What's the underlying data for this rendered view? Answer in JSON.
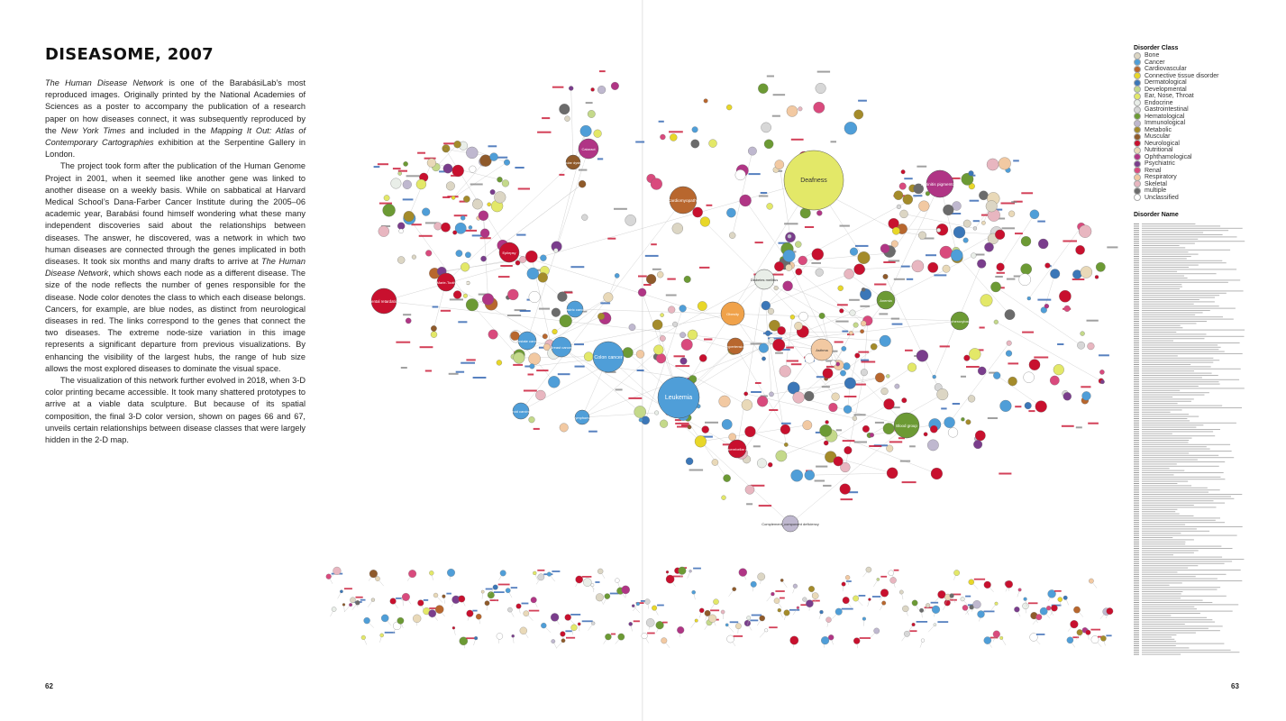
{
  "title": "DISEASOME, 2007",
  "paragraphs": [
    {
      "runs": [
        {
          "text": "The Human Disease Network",
          "italic": true
        },
        {
          "text": " is one of the BarabásiLab’s most reproduced images. Originally printed by the National Academies of Sciences as a poster to accompany the publication of a research paper on how diseases connect, it was subsequently reproduced by the "
        },
        {
          "text": "New York Times",
          "italic": true
        },
        {
          "text": " and included in the "
        },
        {
          "text": "Mapping It Out: Atlas of Contemporary Cartographies",
          "italic": true
        },
        {
          "text": " exhibition at the Serpentine Gallery in London."
        }
      ]
    },
    {
      "runs": [
        {
          "text": "The project took form after the publication of the Human Genome Project in 2001, when it seemed like another gene was linked to another disease on a weekly basis. While on sabbatical at Harvard Medical School’s Dana-Farber Cancer Institute during the 2005–06 academic year, Barabási found himself wondering what these many independent discoveries said about the relationships between diseases. The answer, he discovered, was a network in which two human diseases are connected through the genes implicated in both diseases. It took six months and many drafts to arrive at "
        },
        {
          "text": "The Human Disease Network",
          "italic": true
        },
        {
          "text": ", which shows each node as a different disease. The size of the node reflects the number of genes responsible for the disease. Node color denotes the class to which each disease belongs. Cancers, for example, are blue nodes, as distinct from neurological diseases in red. The links correspond to the genes that connect the two diseases. The extreme node-size variation in this image represents a significant departure from previous visualizations. By enhancing the visibility of the largest hubs, the range of hub size allows the most explored diseases to dominate the visual space."
        }
      ]
    },
    {
      "runs": [
        {
          "text": "The visualization of this network further evolved in 2018, when 3-D color printing became accessible. It took many shattered prototypes to arrive at a viable data sculpture. But because of its spatial composition, the final 3-D color version, shown on pages 66 and 67, unveils certain relationships between disease classes that were largely hidden in the 2-D map."
        }
      ]
    }
  ],
  "page_numbers": {
    "left": "62",
    "right": "63"
  },
  "legend": {
    "class_heading": "Disorder Class",
    "classes": [
      {
        "label": "Bone",
        "color": "#dcd6c4"
      },
      {
        "label": "Cancer",
        "color": "#4f9ed8"
      },
      {
        "label": "Cardiovascular",
        "color": "#b8672e"
      },
      {
        "label": "Connective tissue disorder",
        "color": "#e8d728"
      },
      {
        "label": "Dermatological",
        "color": "#3b77b8"
      },
      {
        "label": "Developmental",
        "color": "#c4d98a"
      },
      {
        "label": "Ear, Nose, Throat",
        "color": "#e3e868"
      },
      {
        "label": "Endocrine",
        "color": "#e9eee8"
      },
      {
        "label": "Gastrointestinal",
        "color": "#d7d7d7"
      },
      {
        "label": "Hematological",
        "color": "#6c9a34"
      },
      {
        "label": "Immunological",
        "color": "#bfb8cf"
      },
      {
        "label": "Metabolic",
        "color": "#a48b2a"
      },
      {
        "label": "Muscular",
        "color": "#8f5a2a"
      },
      {
        "label": "Neurological",
        "color": "#c8102e"
      },
      {
        "label": "Nutritional",
        "color": "#e9d9b8"
      },
      {
        "label": "Ophthamological",
        "color": "#b03585"
      },
      {
        "label": "Psychiatric",
        "color": "#7a3d8c"
      },
      {
        "label": "Renal",
        "color": "#d94a7d"
      },
      {
        "label": "Respiratory",
        "color": "#f2c9a2"
      },
      {
        "label": "Skeletal",
        "color": "#e8b6c0"
      },
      {
        "label": "multiple",
        "color": "#6b6b6b"
      },
      {
        "label": "Unclassified",
        "color": "#ffffff"
      }
    ],
    "name_heading": "Disorder Name"
  },
  "network": {
    "labeled_nodes": [
      {
        "label": "Deafness",
        "color": "#e3e868"
      },
      {
        "label": "Cardiomyopathy",
        "color": "#b8672e"
      },
      {
        "label": "Colon cancer",
        "color": "#4f9ed8"
      },
      {
        "label": "Leukemia",
        "color": "#4f9ed8"
      },
      {
        "label": "Diabetes mellitus",
        "color": "#e9eee8"
      },
      {
        "label": "Obesity",
        "color": "#f0a24a"
      },
      {
        "label": "Asthma",
        "color": "#f2c9a2"
      },
      {
        "label": "Retinitis pigmentosa",
        "color": "#b03585"
      },
      {
        "label": "Blood group",
        "color": "#6c9a34"
      },
      {
        "label": "Mental retardation",
        "color": "#c8102e"
      },
      {
        "label": "Breast cancer",
        "color": "#4f9ed8"
      },
      {
        "label": "Prostate cancer",
        "color": "#4f9ed8"
      },
      {
        "label": "Gastric cancer",
        "color": "#4f9ed8"
      },
      {
        "label": "Lymphoma",
        "color": "#4f9ed8"
      },
      {
        "label": "Thyroid carcinoma",
        "color": "#4f9ed8"
      },
      {
        "label": "Epilepsy",
        "color": "#c8102e"
      },
      {
        "label": "Cataract",
        "color": "#b03585"
      },
      {
        "label": "Muscular dystrophy",
        "color": "#8f5a2a"
      },
      {
        "label": "Hypertension",
        "color": "#b8672e"
      },
      {
        "label": "Complement_component deficiency",
        "color": "#bfb8cf"
      },
      {
        "label": "Anemia",
        "color": "#6c9a34"
      },
      {
        "label": "Spherocytosis",
        "color": "#6c9a34"
      },
      {
        "label": "Charcot-Marie-Tooth disease",
        "color": "#c8102e"
      },
      {
        "label": "Spinocerebellar ataxia",
        "color": "#c8102e"
      }
    ]
  }
}
